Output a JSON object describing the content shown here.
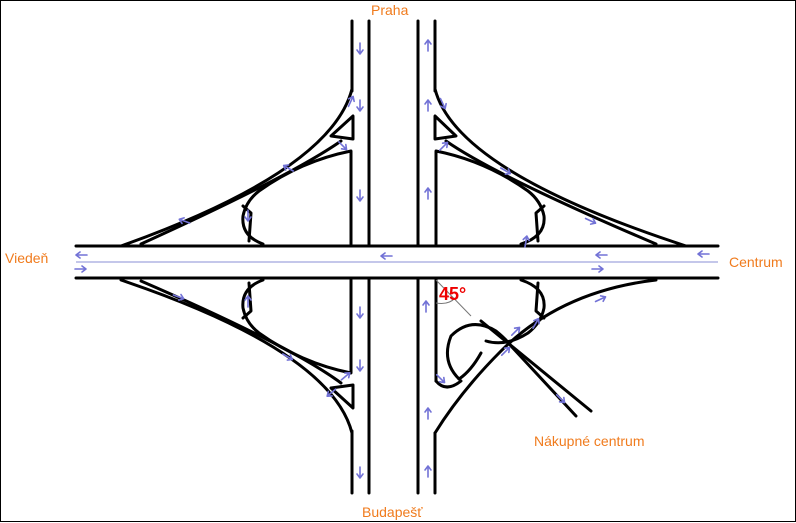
{
  "labels": {
    "north": "Praha",
    "south": "Budapešť",
    "west": "Viedeň",
    "east": "Centrum",
    "shopping": "Nákupné centrum",
    "angle": "45°"
  },
  "colors": {
    "label": "#f07b1d",
    "angle": "#ee0000",
    "arrow": "#7272d6",
    "road": "#000000"
  }
}
